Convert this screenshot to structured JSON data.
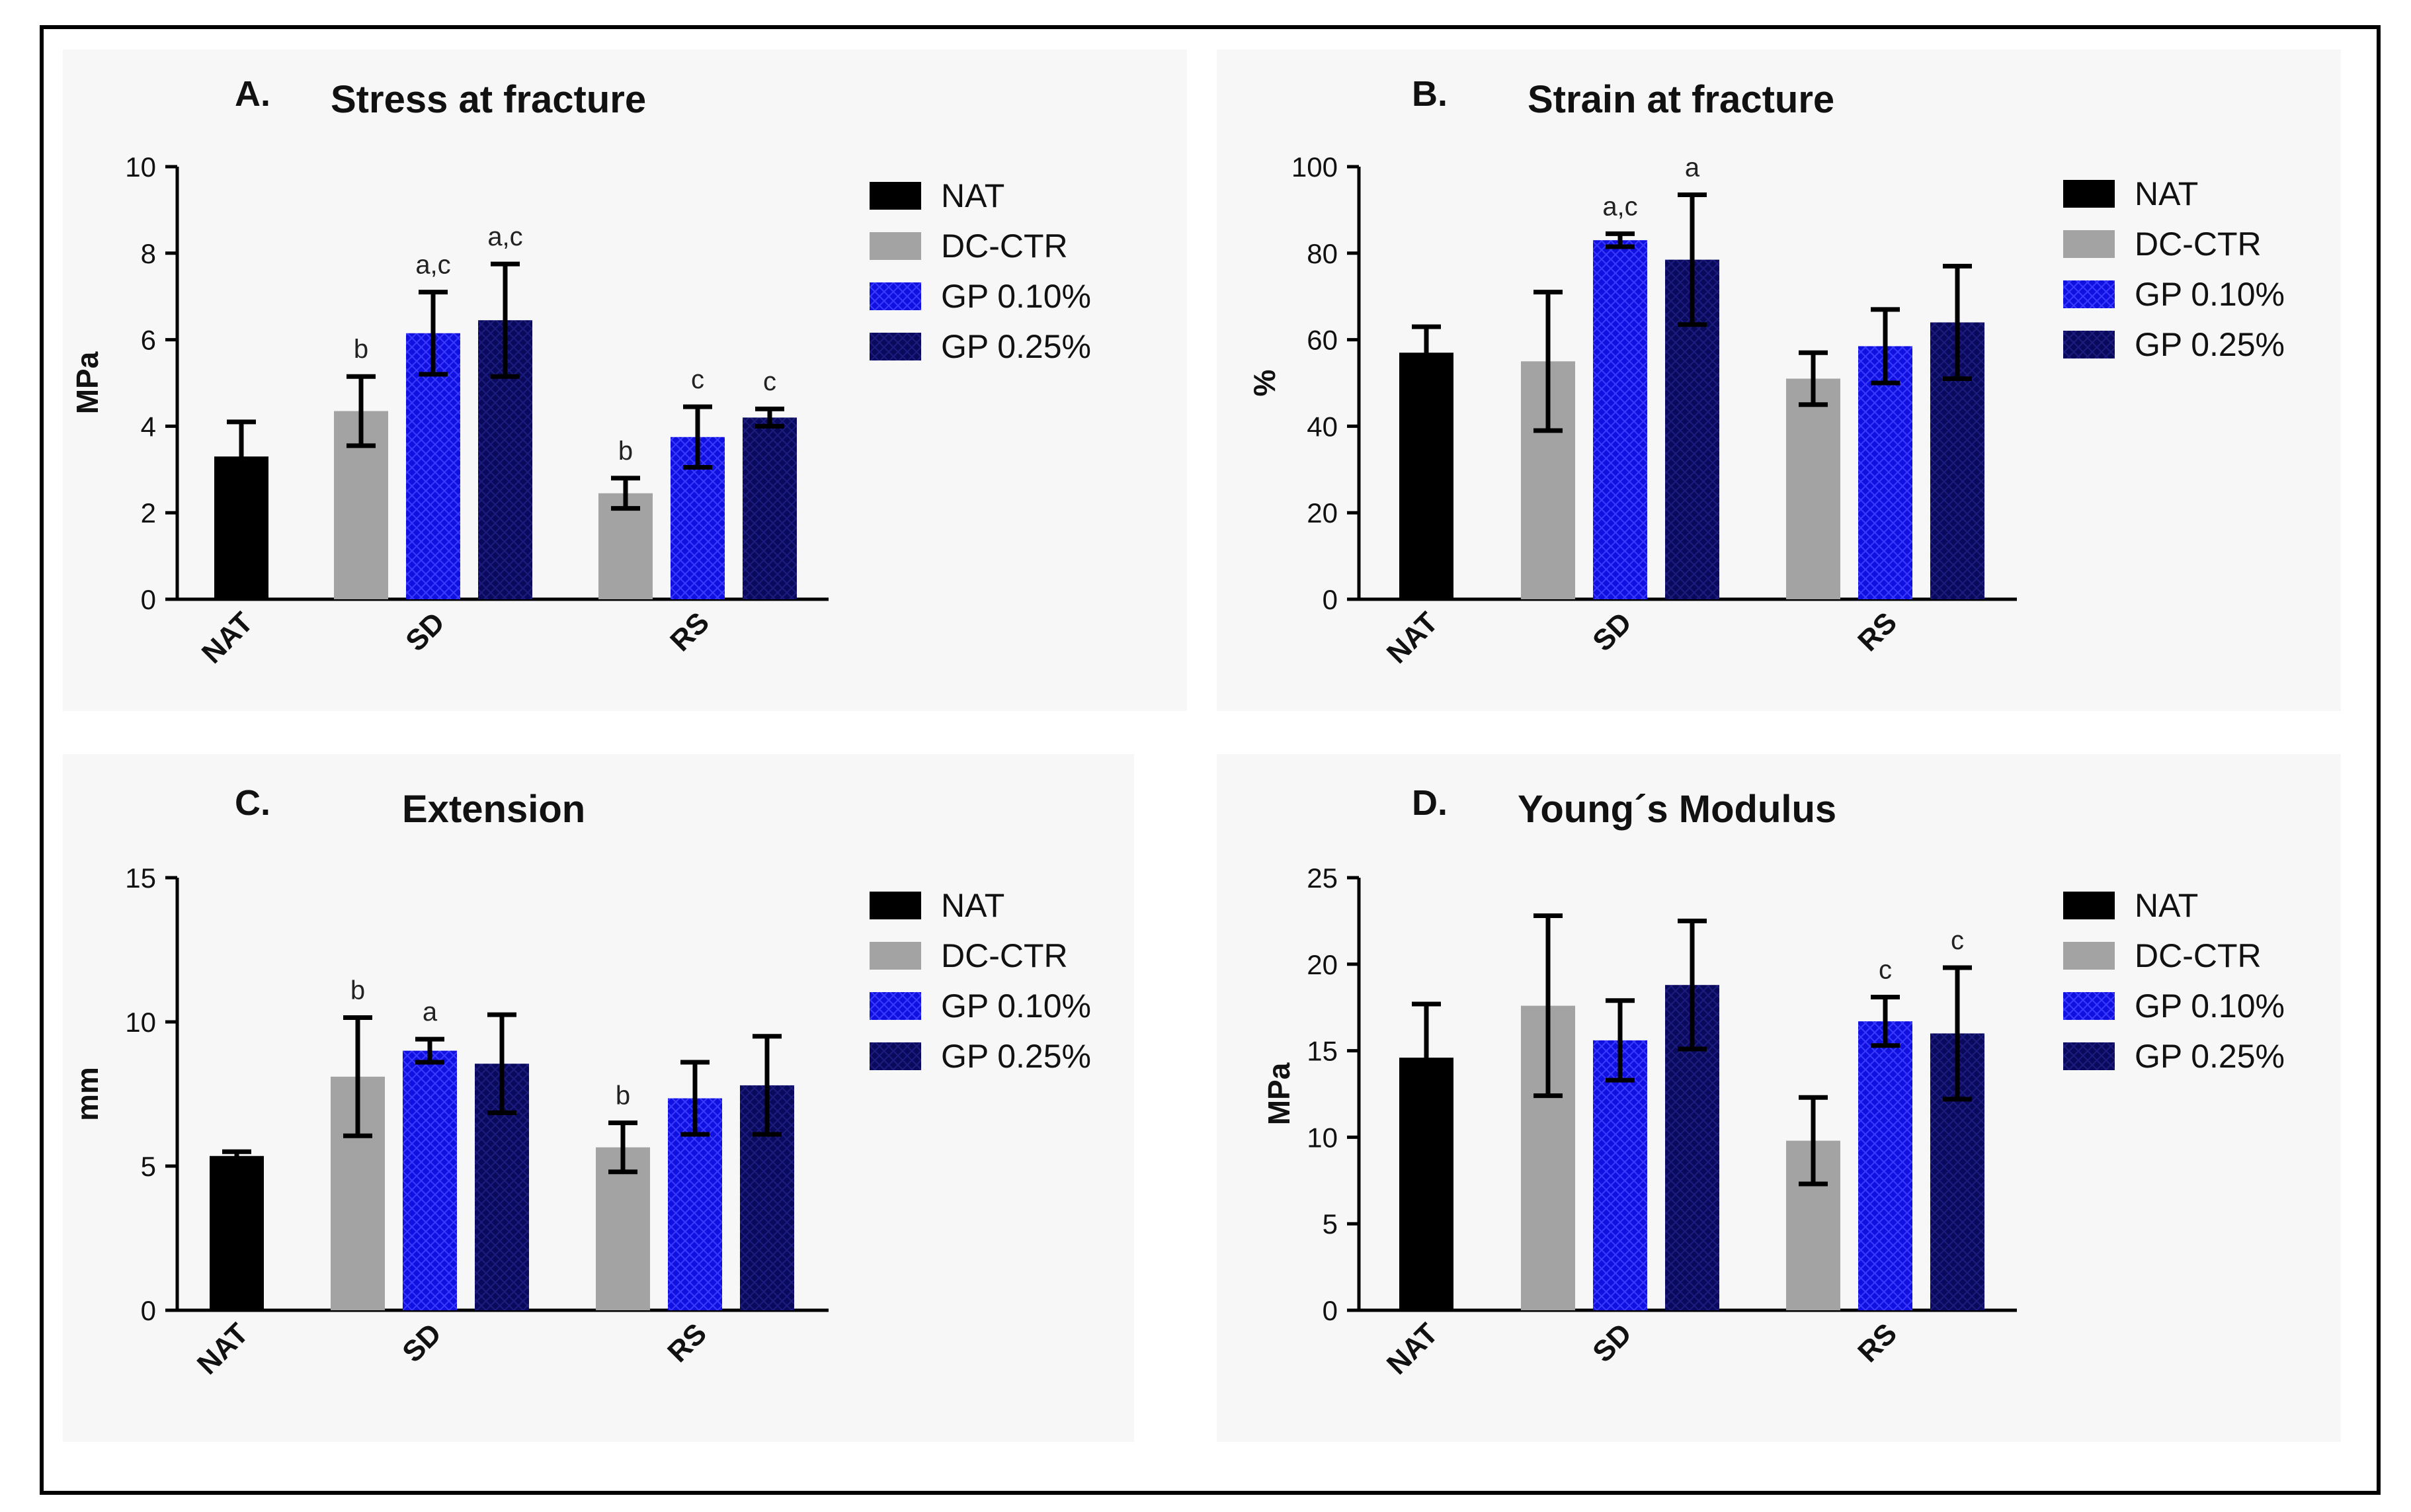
{
  "colors": {
    "NAT": "#000000",
    "DC-CTR": "#a3a3a3",
    "GP 0.10%": "#1010e0",
    "GP 0.25%": "#0a0a5c"
  },
  "chart_data": [
    {
      "type": "bar",
      "letter": "A.",
      "title": "Stress at fracture",
      "ylabel": "MPa",
      "xlabel": "",
      "ylim": [
        0,
        10
      ],
      "yticks": [
        "0",
        "2",
        "4",
        "6",
        "8",
        "10"
      ],
      "categories": [
        "NAT",
        "SD",
        "RS"
      ],
      "legend": [
        "NAT",
        "DC-CTR",
        "GP 0.10%",
        "GP 0.25%"
      ],
      "bars": [
        {
          "category": "NAT",
          "series": "NAT",
          "value": 3.3,
          "error": 0.8,
          "label": ""
        },
        {
          "category": "SD",
          "series": "DC-CTR",
          "value": 4.35,
          "error": 0.8,
          "label": "b"
        },
        {
          "category": "SD",
          "series": "GP 0.10%",
          "value": 6.15,
          "error": 0.95,
          "label": "a,c"
        },
        {
          "category": "SD",
          "series": "GP 0.25%",
          "value": 6.45,
          "error": 1.3,
          "label": "a,c"
        },
        {
          "category": "RS",
          "series": "DC-CTR",
          "value": 2.45,
          "error": 0.35,
          "label": "b"
        },
        {
          "category": "RS",
          "series": "GP 0.10%",
          "value": 3.75,
          "error": 0.7,
          "label": "c"
        },
        {
          "category": "RS",
          "series": "GP 0.25%",
          "value": 4.2,
          "error": 0.2,
          "label": "c"
        }
      ]
    },
    {
      "type": "bar",
      "letter": "B.",
      "title": "Strain at fracture",
      "ylabel": "%",
      "xlabel": "",
      "ylim": [
        0,
        100
      ],
      "yticks": [
        "0",
        "20",
        "40",
        "60",
        "80",
        "100"
      ],
      "categories": [
        "NAT",
        "SD",
        "RS"
      ],
      "legend": [
        "NAT",
        "DC-CTR",
        "GP 0.10%",
        "GP 0.25%"
      ],
      "bars": [
        {
          "category": "NAT",
          "series": "NAT",
          "value": 57,
          "error": 6,
          "label": ""
        },
        {
          "category": "SD",
          "series": "DC-CTR",
          "value": 55,
          "error": 16,
          "label": ""
        },
        {
          "category": "SD",
          "series": "GP 0.10%",
          "value": 83,
          "error": 1.5,
          "label": "a,c"
        },
        {
          "category": "SD",
          "series": "GP 0.25%",
          "value": 78.5,
          "error": 15,
          "label": "a"
        },
        {
          "category": "RS",
          "series": "DC-CTR",
          "value": 51,
          "error": 6,
          "label": ""
        },
        {
          "category": "RS",
          "series": "GP 0.10%",
          "value": 58.5,
          "error": 8.5,
          "label": ""
        },
        {
          "category": "RS",
          "series": "GP 0.25%",
          "value": 64,
          "error": 13,
          "label": ""
        }
      ]
    },
    {
      "type": "bar",
      "letter": "C.",
      "title": "Extension",
      "ylabel": "mm",
      "xlabel": "",
      "ylim": [
        0,
        15
      ],
      "yticks": [
        "0",
        "5",
        "10",
        "15"
      ],
      "categories": [
        "NAT",
        "SD",
        "RS"
      ],
      "legend": [
        "NAT",
        "DC-CTR",
        "GP 0.10%",
        "GP 0.25%"
      ],
      "bars": [
        {
          "category": "NAT",
          "series": "NAT",
          "value": 5.35,
          "error": 0.15,
          "label": ""
        },
        {
          "category": "SD",
          "series": "DC-CTR",
          "value": 8.1,
          "error": 2.05,
          "label": "b"
        },
        {
          "category": "SD",
          "series": "GP 0.10%",
          "value": 9.0,
          "error": 0.4,
          "label": "a"
        },
        {
          "category": "SD",
          "series": "GP 0.25%",
          "value": 8.55,
          "error": 1.7,
          "label": ""
        },
        {
          "category": "RS",
          "series": "DC-CTR",
          "value": 5.65,
          "error": 0.85,
          "label": "b"
        },
        {
          "category": "RS",
          "series": "GP 0.10%",
          "value": 7.35,
          "error": 1.25,
          "label": ""
        },
        {
          "category": "RS",
          "series": "GP 0.25%",
          "value": 7.8,
          "error": 1.7,
          "label": ""
        }
      ]
    },
    {
      "type": "bar",
      "letter": "D.",
      "title": "Young´s Modulus",
      "ylabel": "MPa",
      "xlabel": "",
      "ylim": [
        0,
        25
      ],
      "yticks": [
        "0",
        "5",
        "10",
        "15",
        "20",
        "25"
      ],
      "categories": [
        "NAT",
        "SD",
        "RS"
      ],
      "legend": [
        "NAT",
        "DC-CTR",
        "GP 0.10%",
        "GP 0.25%"
      ],
      "bars": [
        {
          "category": "NAT",
          "series": "NAT",
          "value": 14.6,
          "error": 3.1,
          "label": ""
        },
        {
          "category": "SD",
          "series": "DC-CTR",
          "value": 17.6,
          "error": 5.2,
          "label": ""
        },
        {
          "category": "SD",
          "series": "GP 0.10%",
          "value": 15.6,
          "error": 2.3,
          "label": ""
        },
        {
          "category": "SD",
          "series": "GP 0.25%",
          "value": 18.8,
          "error": 3.7,
          "label": ""
        },
        {
          "category": "RS",
          "series": "DC-CTR",
          "value": 9.8,
          "error": 2.5,
          "label": ""
        },
        {
          "category": "RS",
          "series": "GP 0.10%",
          "value": 16.7,
          "error": 1.4,
          "label": "c"
        },
        {
          "category": "RS",
          "series": "GP 0.25%",
          "value": 16.0,
          "error": 3.8,
          "label": "c"
        }
      ]
    }
  ]
}
